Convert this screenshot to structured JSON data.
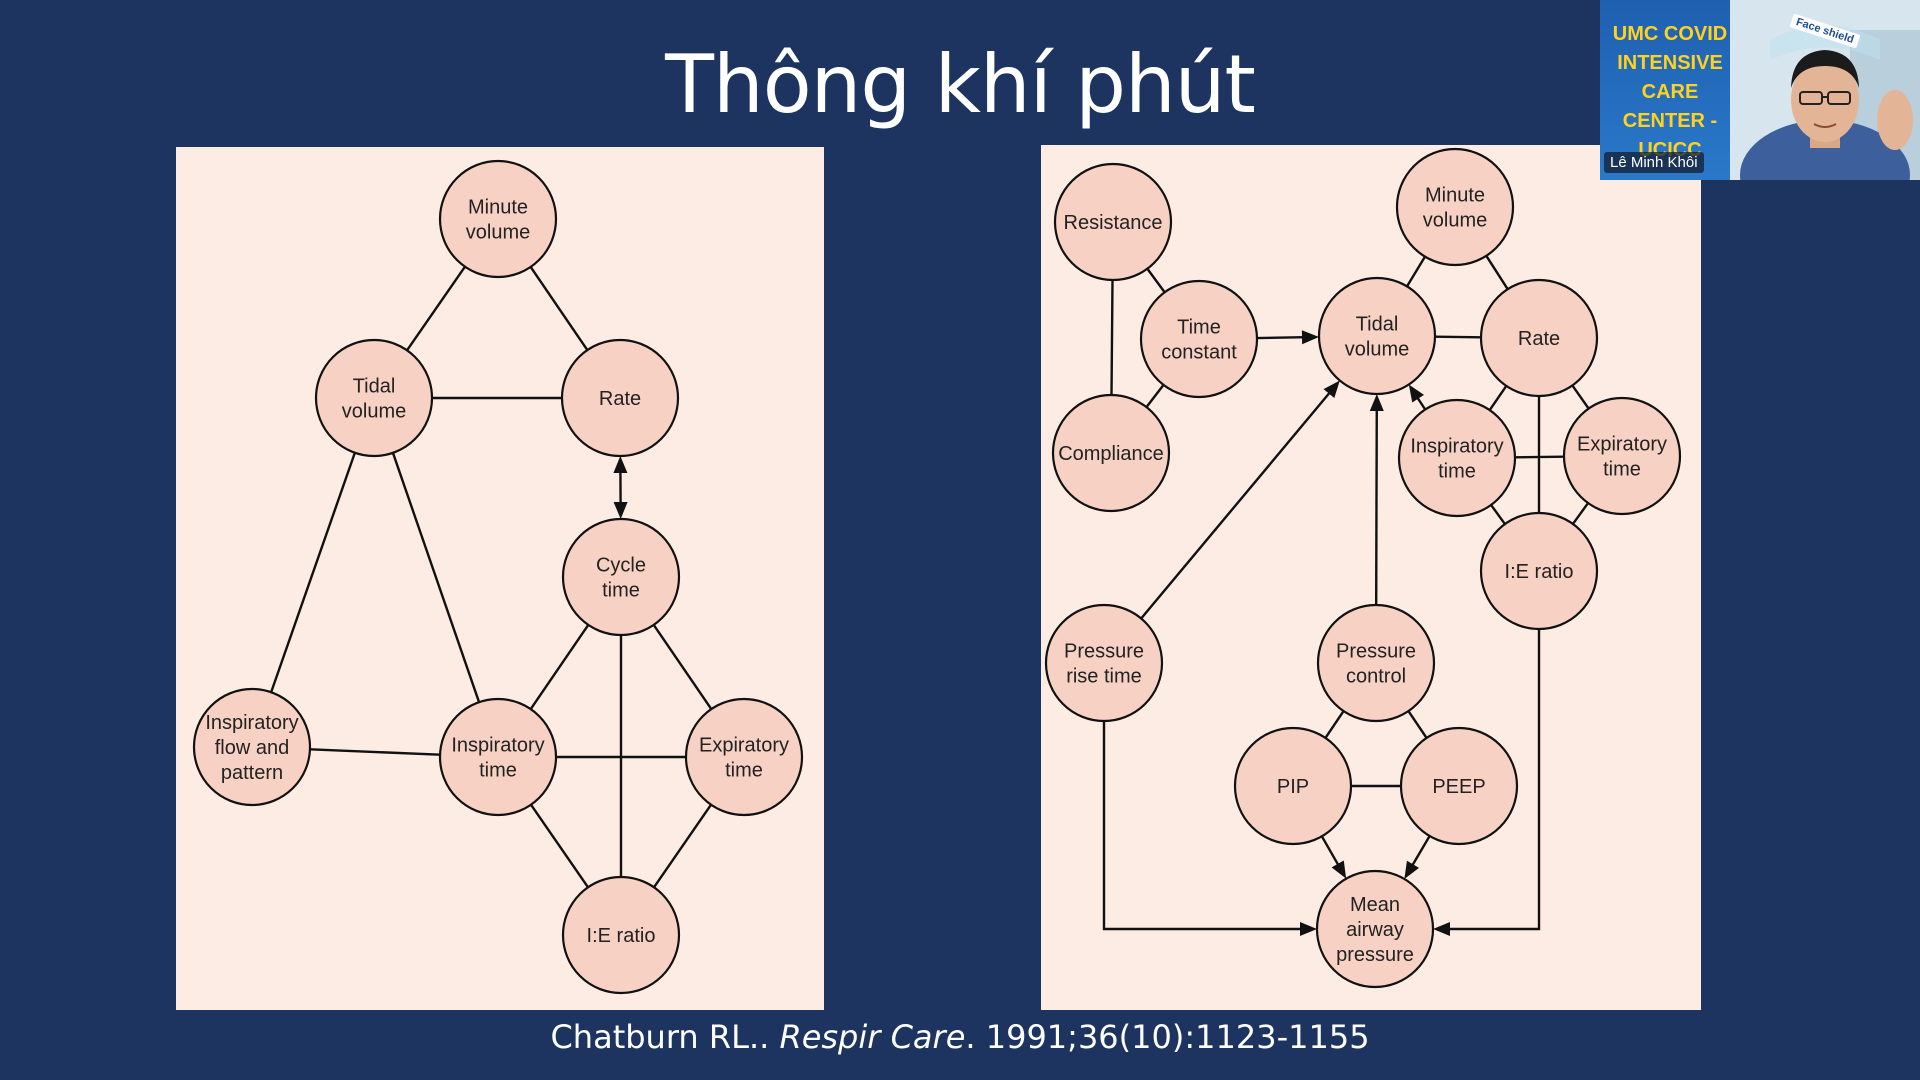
{
  "slide": {
    "title": "Thông khí phút",
    "citation": {
      "author": "Chatburn RL.. ",
      "journal": "Respir Care",
      "details": ". 1991;36(10):1123-1155"
    }
  },
  "webcam": {
    "banner": "UMC COVID\nINTENSIVE\nCARE\nCENTER - UCICC",
    "name": "Lê Minh Khôi",
    "tag": "Face shield"
  },
  "colors": {
    "background": "#1d3461",
    "panel": "#fcece4",
    "node_fill": "#f7d2c4"
  },
  "diagram_left": {
    "nodes": [
      {
        "id": "minute_volume",
        "lines": [
          "Minute",
          "volume"
        ]
      },
      {
        "id": "tidal_volume",
        "lines": [
          "Tidal",
          "volume"
        ]
      },
      {
        "id": "rate",
        "lines": [
          "Rate"
        ]
      },
      {
        "id": "cycle_time",
        "lines": [
          "Cycle",
          "time"
        ]
      },
      {
        "id": "insp_flow",
        "lines": [
          "Inspiratory",
          "flow and",
          "pattern"
        ]
      },
      {
        "id": "insp_time",
        "lines": [
          "Inspiratory",
          "time"
        ]
      },
      {
        "id": "exp_time",
        "lines": [
          "Expiratory",
          "time"
        ]
      },
      {
        "id": "ie_ratio",
        "lines": [
          "I:E ratio"
        ]
      }
    ],
    "edges": [
      {
        "from": "minute_volume",
        "to": "tidal_volume"
      },
      {
        "from": "minute_volume",
        "to": "rate"
      },
      {
        "from": "tidal_volume",
        "to": "rate"
      },
      {
        "from": "rate",
        "to": "cycle_time",
        "arrow": "both"
      },
      {
        "from": "tidal_volume",
        "to": "insp_flow"
      },
      {
        "from": "tidal_volume",
        "to": "insp_time"
      },
      {
        "from": "cycle_time",
        "to": "insp_time"
      },
      {
        "from": "cycle_time",
        "to": "exp_time"
      },
      {
        "from": "cycle_time",
        "to": "ie_ratio"
      },
      {
        "from": "insp_flow",
        "to": "insp_time"
      },
      {
        "from": "insp_time",
        "to": "exp_time"
      },
      {
        "from": "insp_time",
        "to": "ie_ratio"
      },
      {
        "from": "exp_time",
        "to": "ie_ratio"
      }
    ]
  },
  "diagram_right": {
    "nodes": [
      {
        "id": "resistance",
        "lines": [
          "Resistance"
        ]
      },
      {
        "id": "compliance",
        "lines": [
          "Compliance"
        ]
      },
      {
        "id": "time_constant",
        "lines": [
          "Time",
          "constant"
        ]
      },
      {
        "id": "minute_volume",
        "lines": [
          "Minute",
          "volume"
        ]
      },
      {
        "id": "tidal_volume",
        "lines": [
          "Tidal",
          "volume"
        ]
      },
      {
        "id": "rate",
        "lines": [
          "Rate"
        ]
      },
      {
        "id": "insp_time",
        "lines": [
          "Inspiratory",
          "time"
        ]
      },
      {
        "id": "exp_time",
        "lines": [
          "Expiratory",
          "time"
        ]
      },
      {
        "id": "ie_ratio",
        "lines": [
          "I:E ratio"
        ]
      },
      {
        "id": "pressure_rise",
        "lines": [
          "Pressure",
          "rise time"
        ]
      },
      {
        "id": "pressure_control",
        "lines": [
          "Pressure",
          "control"
        ]
      },
      {
        "id": "pip",
        "lines": [
          "PIP"
        ]
      },
      {
        "id": "peep",
        "lines": [
          "PEEP"
        ]
      },
      {
        "id": "mean_airway",
        "lines": [
          "Mean",
          "airway",
          "pressure"
        ]
      }
    ],
    "edges": [
      {
        "from": "resistance",
        "to": "compliance"
      },
      {
        "from": "resistance",
        "to": "time_constant"
      },
      {
        "from": "compliance",
        "to": "time_constant"
      },
      {
        "from": "time_constant",
        "to": "tidal_volume",
        "arrow": "end"
      },
      {
        "from": "minute_volume",
        "to": "tidal_volume"
      },
      {
        "from": "minute_volume",
        "to": "rate"
      },
      {
        "from": "tidal_volume",
        "to": "rate"
      },
      {
        "from": "insp_time",
        "to": "tidal_volume",
        "arrow": "end"
      },
      {
        "from": "insp_time",
        "to": "rate"
      },
      {
        "from": "rate",
        "to": "exp_time"
      },
      {
        "from": "insp_time",
        "to": "exp_time"
      },
      {
        "from": "insp_time",
        "to": "ie_ratio"
      },
      {
        "from": "exp_time",
        "to": "ie_ratio"
      },
      {
        "from": "rate",
        "to": "ie_ratio"
      },
      {
        "from": "pressure_rise",
        "to": "tidal_volume",
        "arrow": "end"
      },
      {
        "from": "pressure_control",
        "to": "tidal_volume",
        "arrow": "end"
      },
      {
        "from": "pressure_control",
        "to": "pip"
      },
      {
        "from": "pressure_control",
        "to": "peep"
      },
      {
        "from": "pip",
        "to": "peep"
      },
      {
        "from": "pip",
        "to": "mean_airway",
        "arrow": "end"
      },
      {
        "from": "peep",
        "to": "mean_airway",
        "arrow": "end"
      },
      {
        "from": "pressure_rise",
        "to": "mean_airway",
        "arrow": "end",
        "route": "down-right"
      },
      {
        "from": "ie_ratio",
        "to": "mean_airway",
        "arrow": "end",
        "route": "down-left"
      }
    ]
  }
}
